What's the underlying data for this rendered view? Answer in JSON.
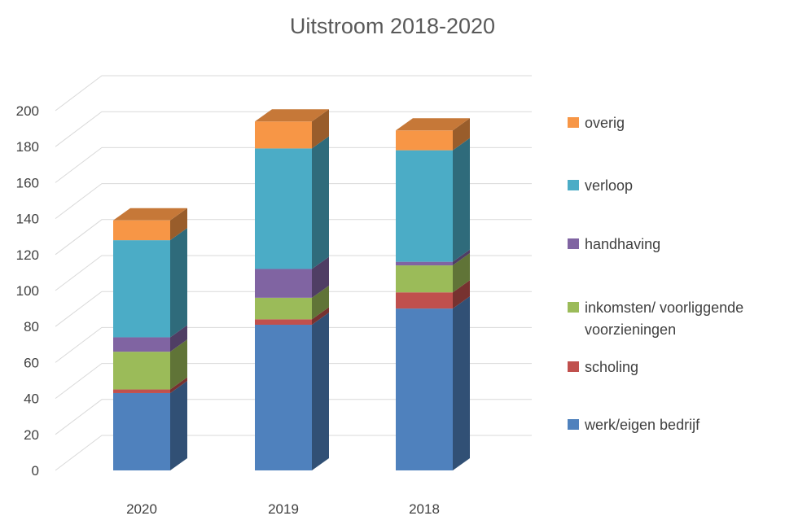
{
  "chart_data": {
    "type": "bar",
    "stacked": true,
    "three_d": true,
    "title": "Uitstroom 2018-2020",
    "categories": [
      "2020",
      "2019",
      "2018"
    ],
    "ylim": [
      0,
      200
    ],
    "yticks": [
      0,
      20,
      40,
      60,
      80,
      100,
      120,
      140,
      160,
      180,
      200
    ],
    "grid": true,
    "legend_position": "right",
    "series": [
      {
        "name": "werk/eigen bedrijf",
        "color": "#4F81BD",
        "values": [
          43,
          81,
          90
        ]
      },
      {
        "name": "scholing",
        "color": "#C0504D",
        "values": [
          2,
          3,
          9
        ]
      },
      {
        "name": "inkomsten/ voorliggende voorzieningen",
        "color": "#9BBB59",
        "values": [
          21,
          12,
          15
        ]
      },
      {
        "name": "handhaving",
        "color": "#8064A2",
        "values": [
          8,
          16,
          2
        ]
      },
      {
        "name": "verloop",
        "color": "#4BACC6",
        "values": [
          54,
          67,
          62
        ]
      },
      {
        "name": "overig",
        "color": "#F79646",
        "values": [
          11,
          15,
          11
        ]
      }
    ]
  }
}
